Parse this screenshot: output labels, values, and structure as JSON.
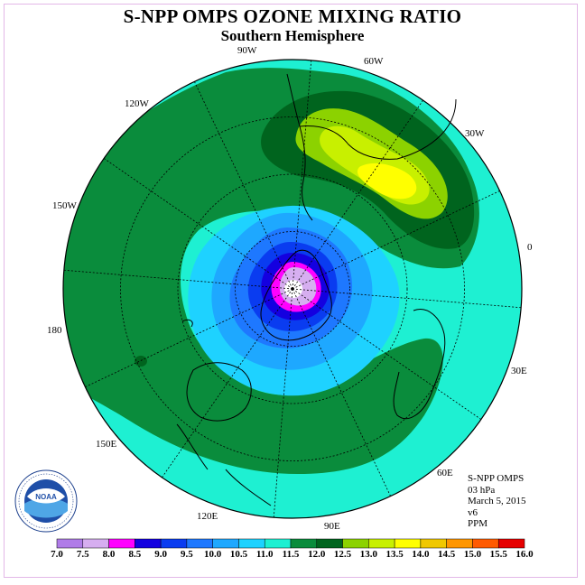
{
  "title": "S-NPP OMPS OZONE MIXING RATIO",
  "subtitle": "Southern Hemisphere",
  "longitude_labels": [
    "90W",
    "60W",
    "30W",
    "0",
    "30E",
    "60E",
    "90E",
    "120E",
    "150E",
    "180",
    "150W",
    "120W"
  ],
  "info": {
    "instrument": "S-NPP OMPS",
    "level": "03 hPa",
    "date": "March 5, 2015",
    "version": "v6",
    "units": "PPM"
  },
  "logo": {
    "text": "NOAA",
    "icon": "noaa-logo"
  },
  "colorbar": {
    "ticks": [
      "7.0",
      "7.5",
      "8.0",
      "8.5",
      "9.0",
      "9.5",
      "10.0",
      "10.5",
      "11.0",
      "11.5",
      "12.0",
      "12.5",
      "13.0",
      "13.5",
      "14.0",
      "14.5",
      "15.0",
      "15.5",
      "16.0"
    ],
    "colors": [
      "#b07ce8",
      "#d6aef0",
      "#ff00ff",
      "#1400e0",
      "#0a3cf0",
      "#1e78ff",
      "#1ea8ff",
      "#1ed2ff",
      "#1ef0d2",
      "#0a8c3c",
      "#00641e",
      "#8cd200",
      "#c8f000",
      "#ffff00",
      "#f0c800",
      "#ff9600",
      "#ff5a00",
      "#e60000",
      "#7a5028"
    ]
  },
  "field_colors": {
    "outer": "#1ef0d2",
    "green": "#0a8c3c",
    "dark_green": "#00641e",
    "lime": "#8cd200",
    "yellow_green": "#c8f000",
    "yellow": "#ffff00"
  }
}
